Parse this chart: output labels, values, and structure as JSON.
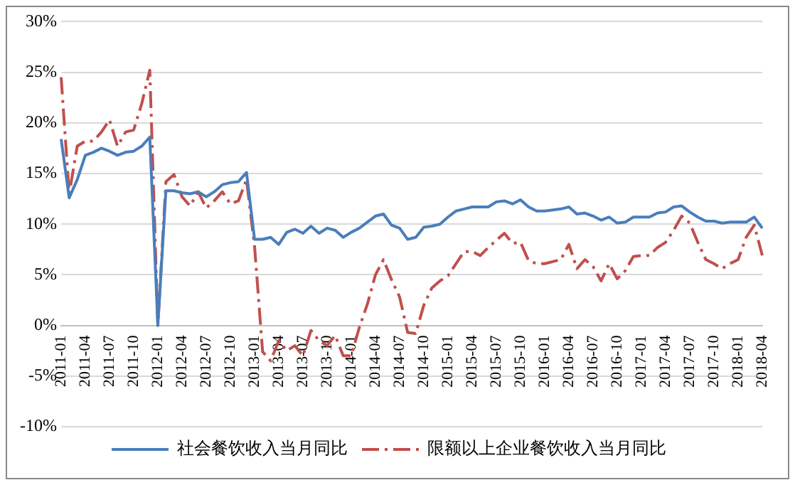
{
  "chart_data": {
    "type": "line",
    "categories": [
      "2011-01",
      null,
      null,
      "2011-04",
      null,
      null,
      "2011-07",
      null,
      null,
      "2011-10",
      null,
      null,
      "2012-01",
      null,
      null,
      "2012-04",
      null,
      null,
      "2012-07",
      null,
      null,
      "2012-10",
      null,
      null,
      "2013-01",
      null,
      null,
      "2013-04",
      null,
      null,
      "2013-07",
      null,
      null,
      "2013-10",
      null,
      null,
      "2014-01",
      null,
      null,
      "2014-04",
      null,
      null,
      "2014-07",
      null,
      null,
      "2014-10",
      null,
      null,
      "2015-01",
      null,
      null,
      "2015-04",
      null,
      null,
      "2015-07",
      null,
      null,
      "2015-10",
      null,
      null,
      "2016-01",
      null,
      null,
      "2016-04",
      null,
      null,
      "2016-07",
      null,
      null,
      "2016-10",
      null,
      null,
      "2017-01",
      null,
      null,
      "2017-04",
      null,
      null,
      "2017-07",
      null,
      null,
      "2017-10",
      null,
      null,
      "2018-01",
      null,
      null,
      "2018-04"
    ],
    "series": [
      {
        "name": "社会餐饮收入当月同比",
        "color": "#4a7ebb",
        "line_style": "solid",
        "values": [
          18.4,
          12.6,
          14.4,
          16.8,
          17.1,
          17.5,
          17.2,
          16.8,
          17.1,
          17.2,
          17.7,
          18.6,
          0,
          13.3,
          13.3,
          13.1,
          13.0,
          13.2,
          12.7,
          13.2,
          13.9,
          14.1,
          14.2,
          15.1,
          8.5,
          8.5,
          8.7,
          8.0,
          9.2,
          9.5,
          9.1,
          9.8,
          9.1,
          9.6,
          9.4,
          8.7,
          9.2,
          9.6,
          10.2,
          10.8,
          11.0,
          9.9,
          9.6,
          8.5,
          8.7,
          9.7,
          9.8,
          10.0,
          10.7,
          11.3,
          11.5,
          11.7,
          11.7,
          11.7,
          12.2,
          12.3,
          12.0,
          12.4,
          11.7,
          11.3,
          11.3,
          11.4,
          11.5,
          11.7,
          11.0,
          11.1,
          10.8,
          10.4,
          10.7,
          10.1,
          10.2,
          10.7,
          10.7,
          10.7,
          11.1,
          11.2,
          11.7,
          11.8,
          11.2,
          10.7,
          10.3,
          10.3,
          10.1,
          10.2,
          10.2,
          10.2,
          10.7,
          9.6
        ]
      },
      {
        "name": "限额以上企业餐饮收入当月同比",
        "color": "#c0504d",
        "line_style": "dashed",
        "values": [
          24.5,
          13.0,
          17.7,
          18.2,
          18.2,
          19.1,
          20.3,
          17.7,
          19.1,
          19.3,
          21.9,
          25.2,
          0,
          14.2,
          14.9,
          12.7,
          11.8,
          13.2,
          11.6,
          12.3,
          13.2,
          12.0,
          12.3,
          14.4,
          7.8,
          -2.6,
          -3.5,
          -1.5,
          -2.5,
          -2.0,
          -3.0,
          -0.5,
          -1.5,
          -2.0,
          -1.0,
          -3.0,
          -3.0,
          -0.2,
          2.1,
          5.0,
          6.5,
          4.5,
          2.8,
          -0.7,
          -0.8,
          2.0,
          3.7,
          4.4,
          4.9,
          6.1,
          7.3,
          7.3,
          6.9,
          7.7,
          8.4,
          9.1,
          8.1,
          8.2,
          6.4,
          6.1,
          6.1,
          6.3,
          6.5,
          8.0,
          5.6,
          6.5,
          5.8,
          4.4,
          6.1,
          4.6,
          5.4,
          6.8,
          6.9,
          6.9,
          7.7,
          8.2,
          9.4,
          10.8,
          10.1,
          8.2,
          6.5,
          6.1,
          5.6,
          6.1,
          6.5,
          8.7,
          9.9,
          6.9
        ]
      }
    ],
    "ylim": [
      -10,
      30
    ],
    "yticks": [
      {
        "value": -10,
        "label": "-10%"
      },
      {
        "value": -5,
        "label": "-5%"
      },
      {
        "value": 0,
        "label": "0%"
      },
      {
        "value": 5,
        "label": "5%"
      },
      {
        "value": 10,
        "label": "10%"
      },
      {
        "value": 15,
        "label": "15%"
      },
      {
        "value": 20,
        "label": "20%"
      },
      {
        "value": 25,
        "label": "25%"
      },
      {
        "value": 30,
        "label": "30%"
      }
    ],
    "grid": "y",
    "legend": "bottom",
    "marker": "none"
  }
}
